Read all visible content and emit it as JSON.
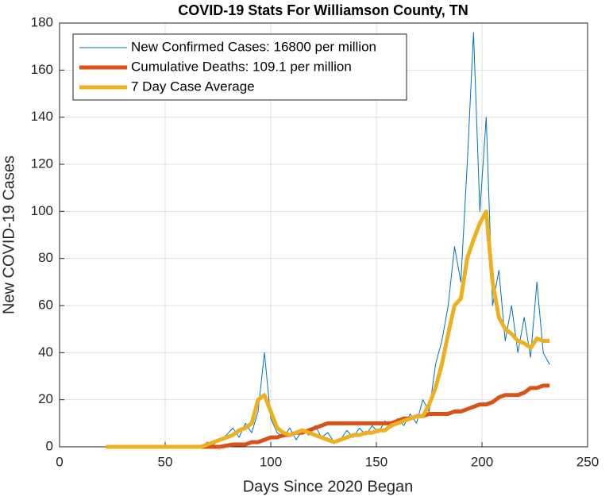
{
  "chart_data": {
    "type": "line",
    "title": "COVID-19 Stats For Williamson County, TN",
    "x_label": "Days Since 2020 Began",
    "y_label": "New COVID-19 Cases",
    "x": [
      22,
      25,
      28,
      31,
      34,
      37,
      40,
      43,
      46,
      49,
      52,
      55,
      58,
      61,
      64,
      67,
      70,
      73,
      76,
      79,
      82,
      85,
      88,
      91,
      94,
      97,
      100,
      103,
      106,
      109,
      112,
      115,
      118,
      121,
      124,
      127,
      130,
      133,
      136,
      139,
      142,
      145,
      148,
      151,
      154,
      157,
      160,
      163,
      166,
      169,
      172,
      175,
      178,
      181,
      184,
      187,
      190,
      193,
      196,
      199,
      202,
      205,
      208,
      211,
      214,
      217,
      220,
      223,
      226,
      229,
      232
    ],
    "series": [
      {
        "name": "New Confirmed Cases: 16800 per million",
        "color": "#0072bd",
        "width": 1,
        "values": [
          0,
          0,
          0,
          0,
          0,
          0,
          0,
          0,
          0,
          0,
          0,
          0,
          0,
          0,
          0,
          0,
          2,
          1,
          3,
          5,
          8,
          4,
          10,
          6,
          15,
          40,
          12,
          6,
          4,
          8,
          3,
          7,
          5,
          9,
          4,
          6,
          2,
          3,
          7,
          4,
          8,
          5,
          9,
          6,
          11,
          8,
          12,
          9,
          14,
          10,
          20,
          15,
          35,
          45,
          60,
          85,
          70,
          120,
          176,
          100,
          140,
          60,
          75,
          45,
          60,
          40,
          55,
          38,
          70,
          40,
          35
        ]
      },
      {
        "name": "Cumulative Deaths: 109.1 per million",
        "color": "#d95319",
        "width": 5,
        "values": [
          0,
          0,
          0,
          0,
          0,
          0,
          0,
          0,
          0,
          0,
          0,
          0,
          0,
          0,
          0,
          0,
          0,
          0,
          0,
          0.5,
          1,
          1,
          1,
          2,
          2,
          3,
          4,
          4,
          5,
          5,
          6,
          6,
          7,
          8,
          9,
          10,
          10,
          10,
          10,
          10,
          10,
          10,
          10,
          10,
          10,
          10,
          11,
          12,
          12,
          13,
          13,
          14,
          14,
          14,
          14,
          15,
          15,
          16,
          17,
          18,
          18,
          19,
          21,
          22,
          22,
          22,
          23,
          25,
          25,
          26,
          26
        ]
      },
      {
        "name": "7 Day Case Average",
        "color": "#edb120",
        "width": 5,
        "values": [
          0,
          0,
          0,
          0,
          0,
          0,
          0,
          0,
          0,
          0,
          0,
          0,
          0,
          0,
          0,
          0,
          1,
          2,
          3,
          4,
          5,
          7,
          8,
          10,
          20,
          22,
          15,
          8,
          6,
          5,
          6,
          7,
          6,
          5,
          4,
          3,
          2,
          3,
          4,
          5,
          5,
          6,
          6,
          7,
          7,
          9,
          10,
          11,
          12,
          13,
          13,
          18,
          25,
          35,
          48,
          60,
          63,
          80,
          88,
          95,
          100,
          70,
          55,
          50,
          48,
          45,
          44,
          42,
          46,
          45,
          45
        ]
      }
    ],
    "xlim": [
      0,
      250
    ],
    "xticks": [
      0,
      50,
      100,
      150,
      200,
      250
    ],
    "ylim": [
      0,
      180
    ],
    "yticks": [
      0,
      20,
      40,
      60,
      80,
      100,
      120,
      140,
      160,
      180
    ],
    "grid": true,
    "legend": "upper left"
  }
}
